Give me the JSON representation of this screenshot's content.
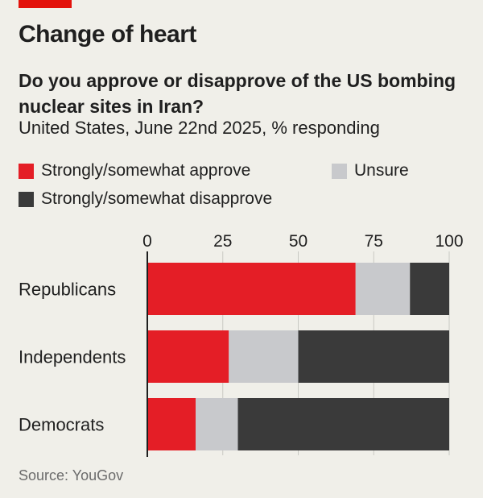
{
  "header": {
    "title": "Change of heart",
    "subtitle": "Do you approve or disapprove of the US bombing nuclear sites in Iran?",
    "description": "United States, June 22nd 2025, % responding"
  },
  "colors": {
    "accent": "#e3120b",
    "approve": "#e41e26",
    "unsure": "#c8c9cc",
    "disapprove": "#3a3a3a"
  },
  "legend": {
    "approve": "Strongly/somewhat approve",
    "unsure": "Unsure",
    "disapprove": "Strongly/somewhat disapprove"
  },
  "chart_data": {
    "type": "bar",
    "orientation": "horizontal",
    "stacked": true,
    "categories": [
      "Republicans",
      "Independents",
      "Democrats"
    ],
    "series": [
      {
        "name": "Strongly/somewhat approve",
        "values": [
          69,
          27,
          16
        ]
      },
      {
        "name": "Unsure",
        "values": [
          18,
          23,
          14
        ]
      },
      {
        "name": "Strongly/somewhat disapprove",
        "values": [
          13,
          50,
          70
        ]
      }
    ],
    "xlim": [
      0,
      100
    ],
    "xticks": [
      0,
      25,
      50,
      75,
      100
    ],
    "grid": true,
    "legend_position": "top-left"
  },
  "source": "Source: YouGov"
}
